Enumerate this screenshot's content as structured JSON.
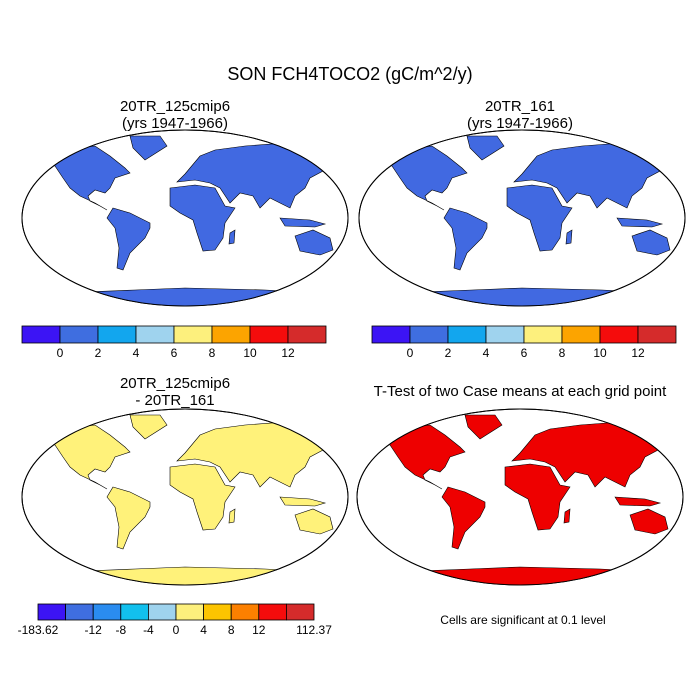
{
  "title": "SON FCH4TOCO2 (gC/m^2/y)",
  "panels": [
    {
      "title": [
        "20TR_125cmip6",
        "(yrs 1947-1966)"
      ],
      "land_color": "#4169e1"
    },
    {
      "title": [
        "20TR_161",
        "(yrs 1947-1966)"
      ],
      "land_color": "#4169e1"
    },
    {
      "title": [
        "20TR_125cmip6",
        "- 20TR_161"
      ],
      "land_color": "#fff27a"
    },
    {
      "title": [
        "T-Test of two Case means at each grid point"
      ],
      "land_color": "#ee0000"
    }
  ],
  "colorbars": [
    {
      "colors": [
        "#3c14f5",
        "#3f6ee0",
        "#12a6ee",
        "#9fd3ee",
        "#fdf07d",
        "#fca400",
        "#f50c0c",
        "#d52b2b"
      ],
      "labels": [
        null,
        "0",
        "2",
        "4",
        "6",
        "8",
        "10",
        "12",
        null
      ]
    },
    {
      "colors": [
        "#3c14f5",
        "#3f6ee0",
        "#12a6ee",
        "#9fd3ee",
        "#fdf07d",
        "#fca400",
        "#f50c0c",
        "#d52b2b"
      ],
      "labels": [
        null,
        "0",
        "2",
        "4",
        "6",
        "8",
        "10",
        "12",
        null
      ]
    },
    {
      "colors": [
        "#3c14f5",
        "#3f6ee0",
        "#2a8cf0",
        "#12c0ee",
        "#9fd3ee",
        "#fdf07d",
        "#fcc400",
        "#fc8000",
        "#f50c0c",
        "#d52b2b"
      ],
      "labels": [
        "-183.62",
        null,
        "-12",
        "-8",
        "-4",
        "0",
        "4",
        "8",
        "12",
        null,
        "112.37"
      ]
    }
  ],
  "footnote": "Cells are significant at 0.1 level"
}
